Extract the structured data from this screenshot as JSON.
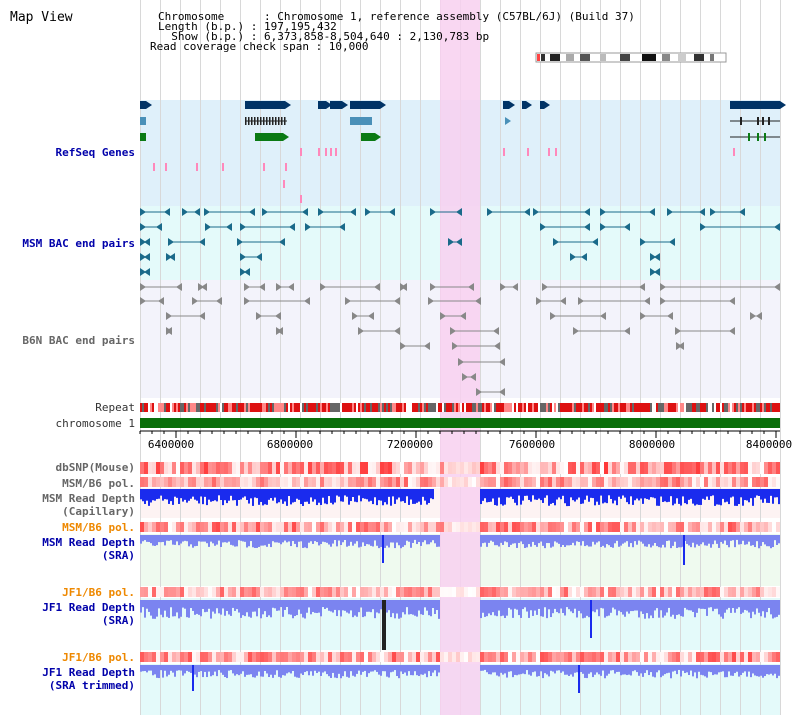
{
  "panel": {
    "title": "Map View"
  },
  "info_lines": [
    "Chromosome      : Chromosome 1, reference assembly (C57BL/6J) (Build 37)",
    "Length (b.p.) : 197,195,432",
    "  Show (b.p.) : 6,373,858-8,504,640 : 2,130,783 bp",
    "Read coverage check span : 10,000"
  ],
  "tracks": {
    "refseq": "RefSeq Genes",
    "msm_bac": "MSM BAC end pairs",
    "b6n_bac": "B6N BAC end pairs",
    "repeat": "Repeat",
    "chromosome": "chromosome 1",
    "dbsnp": "dbSNP(Mouse)",
    "msm_b6_pol_1": "MSM/B6 pol.",
    "msm_depth_cap_1": "MSM Read Depth",
    "msm_depth_cap_2": "(Capillary)",
    "msm_b6_pol_2": "MSM/B6 pol.",
    "msm_depth_sra_1": "MSM Read Depth",
    "msm_depth_sra_2": "(SRA)",
    "jf1_b6_pol_1": "JF1/B6 pol.",
    "jf1_depth_sra_1": "JF1 Read Depth",
    "jf1_depth_sra_2": "(SRA)",
    "jf1_b6_pol_2": "JF1/B6 pol.",
    "jf1_depth_trim_1": "JF1 Read Depth",
    "jf1_depth_trim_2": "(SRA trimmed)"
  },
  "axis": {
    "ticks": [
      "6400000",
      "6800000",
      "7200000",
      "7600000",
      "8000000",
      "8400000"
    ]
  },
  "colors": {
    "highlight": "#f8d0f0",
    "refseq_bg": "#dff0fa",
    "bac_bg": "#e4fafa",
    "gene_navy": "#003366",
    "gene_teal": "#4a90b8",
    "gene_green": "#0a7a14",
    "chrom_green": "#0a6e0a",
    "snp_red": "#ff5050",
    "depth_blue": "#1a2bee",
    "depth_light": "#7b84f0",
    "gray_feature": "#888888"
  }
}
